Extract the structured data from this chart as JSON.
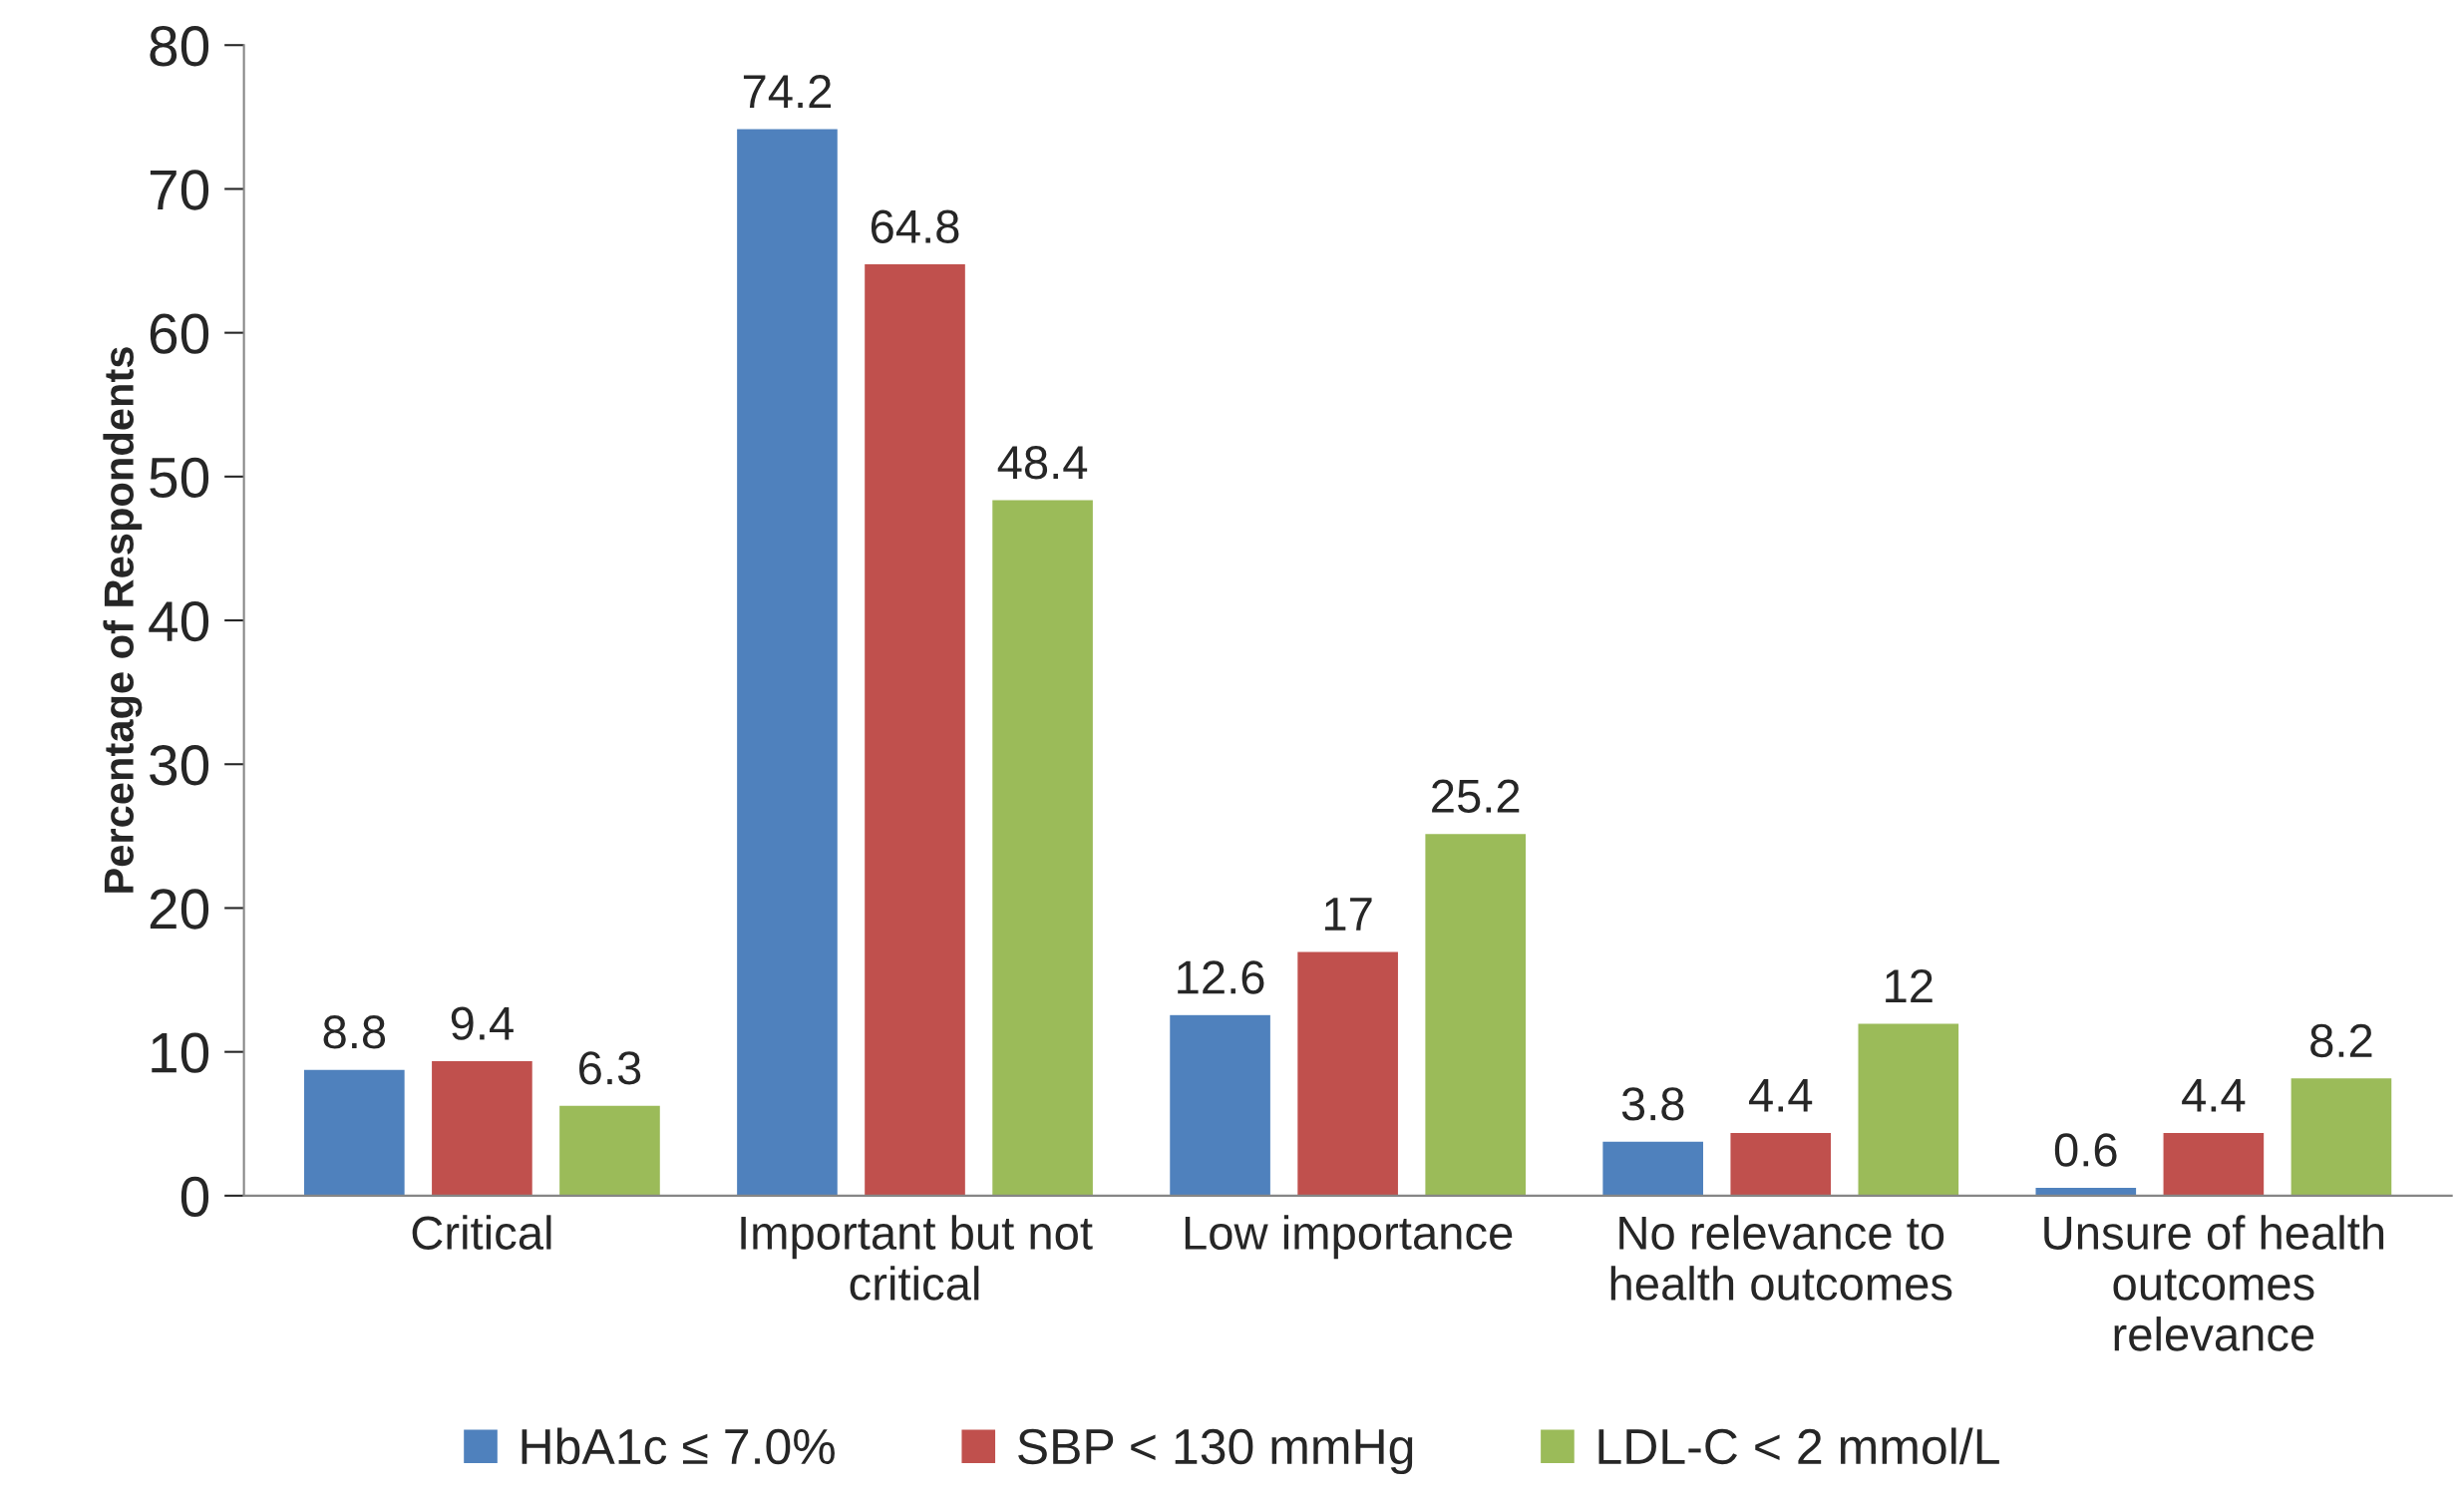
{
  "chart_data": {
    "type": "bar",
    "ylabel": "Percentage of Respondents",
    "categories": [
      "Critical",
      "Important but not\ncritical",
      "Low importance",
      "No relevance to\nhealth outcomes",
      "Unsure of health\noutcomes\nrelevance"
    ],
    "series": [
      {
        "name": "HbA1c ≤ 7.0%",
        "color": "#4f81bd",
        "values": [
          8.8,
          74.2,
          12.6,
          3.8,
          0.6
        ]
      },
      {
        "name": "SBP < 130 mmHg",
        "color": "#c0504d",
        "values": [
          9.4,
          64.8,
          17,
          4.4,
          4.4
        ]
      },
      {
        "name": "LDL-C < 2 mmol/L",
        "color": "#9bbb59",
        "values": [
          6.3,
          48.4,
          25.2,
          12,
          8.2
        ]
      }
    ],
    "ylim": [
      0,
      80
    ],
    "yticks": [
      0,
      10,
      20,
      30,
      40,
      50,
      60,
      70,
      80
    ],
    "data_labels": true,
    "grid": false,
    "legend": "bottom"
  }
}
